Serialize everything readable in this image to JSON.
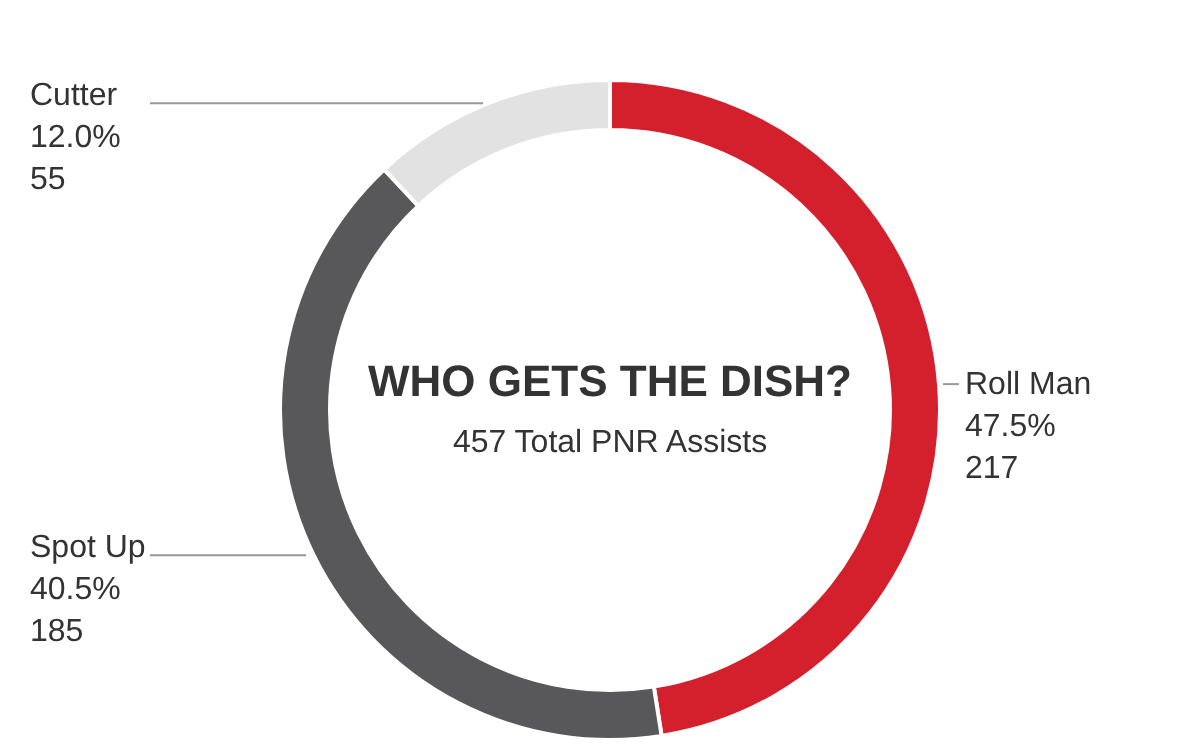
{
  "chart_data": {
    "type": "donut",
    "title": "WHO GETS THE DISH?",
    "subtitle": "457 Total PNR Assists",
    "categories": [
      "Roll Man",
      "Spot Up",
      "Cutter"
    ],
    "values": [
      47.5,
      40.5,
      12.0
    ],
    "colors": [
      "#d4202c",
      "#58585a",
      "#e2e2e2"
    ],
    "value_labels": [
      "47.5%\n217",
      "40.5%\n185",
      "12.0%\n55"
    ]
  }
}
